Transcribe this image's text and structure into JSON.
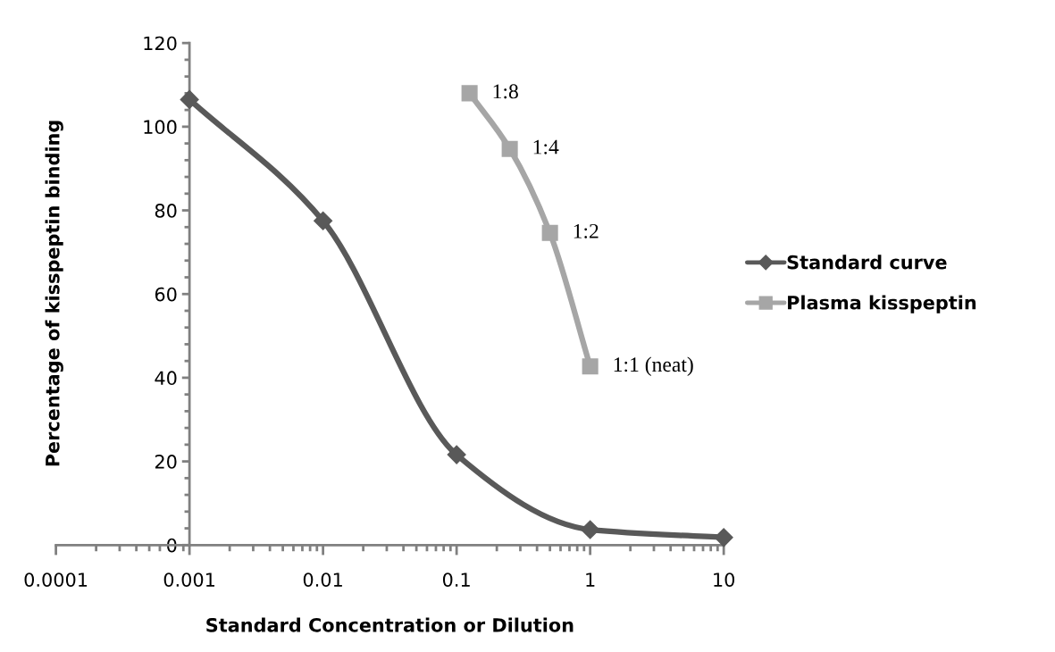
{
  "chart_data": {
    "type": "line",
    "xlabel": "Standard Concentration or Dilution",
    "ylabel": "Percentage of kisspeptin binding",
    "log": "x",
    "xlim": [
      0.0001,
      10
    ],
    "xticks": [
      0.0001,
      0.001,
      0.01,
      0.1,
      1,
      10
    ],
    "ylim": [
      0,
      120
    ],
    "yticks": [
      0,
      20,
      40,
      60,
      80,
      100,
      120
    ],
    "grid": false,
    "legend": "right",
    "line_style": "solid",
    "series": [
      {
        "name": "Standard curve",
        "color": "#595959",
        "marker": "diamond",
        "x": [
          0.001,
          0.01,
          0.1,
          1,
          10
        ],
        "values": [
          106.5,
          77.5,
          21.6,
          3.7,
          1.8
        ]
      },
      {
        "name": "Plasma kisspeptin",
        "color": "#a6a6a6",
        "marker": "square",
        "x": [
          0.125,
          0.25,
          0.5,
          1
        ],
        "values": [
          108,
          94.7,
          74.6,
          42.7
        ]
      }
    ],
    "annotations": [
      {
        "text": "1:8",
        "x": 0.125,
        "y": 108
      },
      {
        "text": "1:4",
        "x": 0.25,
        "y": 94.7
      },
      {
        "text": "1:2",
        "x": 0.5,
        "y": 74.6
      },
      {
        "text": "1:1 (neat)",
        "x": 1,
        "y": 42.7
      }
    ]
  }
}
